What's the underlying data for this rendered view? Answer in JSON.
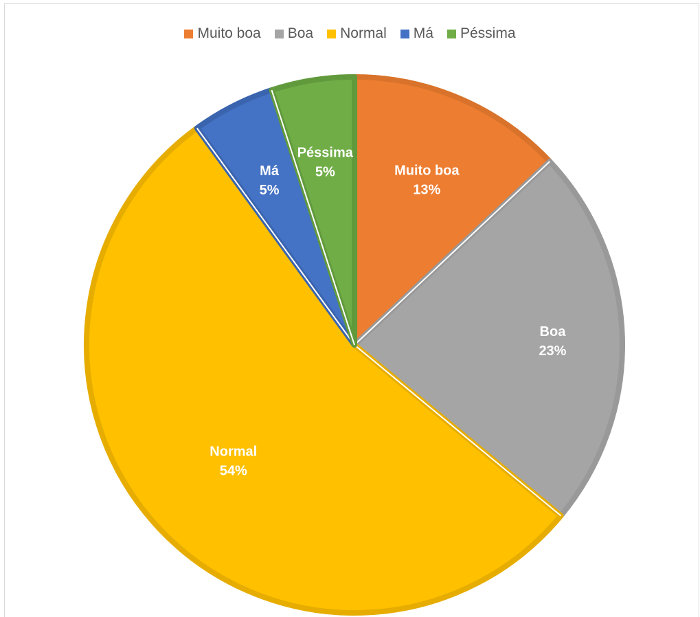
{
  "chart_data": {
    "type": "pie",
    "categories": [
      "Muito boa",
      "Boa",
      "Normal",
      "Má",
      "Péssima"
    ],
    "values": [
      13,
      23,
      54,
      5,
      5
    ],
    "data_labels": [
      "13%",
      "23%",
      "54%",
      "5%",
      "5%"
    ],
    "colors": [
      "#ed7d31",
      "#a5a5a5",
      "#ffc000",
      "#4472c4",
      "#70ad47"
    ],
    "border_colors": [
      "#d9732b",
      "#999999",
      "#e6ad00",
      "#3a64ad",
      "#619a3c"
    ],
    "legend_position": "top",
    "start_angle_deg": 0,
    "direction": "clockwise"
  }
}
